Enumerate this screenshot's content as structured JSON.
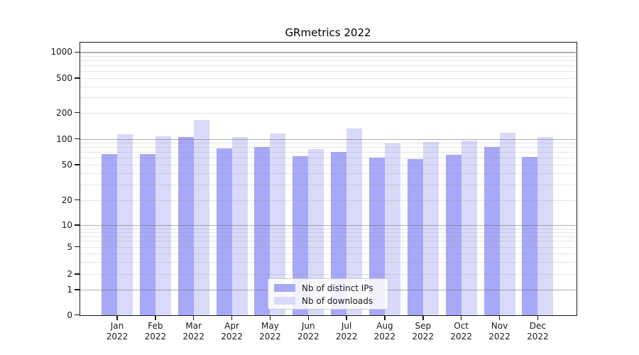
{
  "colors": {
    "distinct_ips": "#a8a8f8",
    "downloads": "#d9d9f9",
    "grid_minor": "#ebebeb",
    "grid_major": "#bdbdbd",
    "axis": "#1a1a1a",
    "background": "#ffffff"
  },
  "axis": {
    "y_tick_labels": [
      "1000",
      "500",
      "200",
      "100",
      "50",
      "20",
      "10",
      "5",
      "2",
      "1",
      "0"
    ],
    "y_tick_values": [
      1000,
      500,
      200,
      100,
      50,
      20,
      10,
      5,
      2,
      1,
      0
    ],
    "gridlines_minor": [
      2,
      3,
      4,
      5,
      6,
      7,
      8,
      9,
      20,
      30,
      40,
      50,
      60,
      70,
      80,
      90,
      200,
      300,
      400,
      500,
      600,
      700,
      800,
      900
    ],
    "gridlines_major": [
      1,
      10,
      100,
      1000
    ]
  },
  "chart_data": {
    "type": "bar",
    "title": "GRmetrics 2022",
    "categories": [
      "Jan 2022",
      "Feb 2022",
      "Mar 2022",
      "Apr 2022",
      "May 2022",
      "Jun 2022",
      "Jul 2022",
      "Aug 2022",
      "Sep 2022",
      "Oct 2022",
      "Nov 2022",
      "Dec 2022"
    ],
    "series": [
      {
        "name": "Nb of distinct IPs",
        "color_key": "distinct_ips",
        "values": [
          67,
          66,
          105,
          77,
          80,
          63,
          71,
          60,
          58,
          65,
          80,
          62
        ]
      },
      {
        "name": "Nb of downloads",
        "color_key": "downloads",
        "values": [
          113,
          107,
          165,
          104,
          115,
          76,
          132,
          89,
          91,
          95,
          117,
          104
        ]
      }
    ],
    "xlabel": "",
    "ylabel": "",
    "yscale": "symlog",
    "y_ticks": [
      0,
      1,
      2,
      5,
      10,
      20,
      50,
      100,
      200,
      500,
      1000
    ],
    "ylim": [
      0,
      1300
    ],
    "grid": "on",
    "legend_position": "lower center"
  }
}
